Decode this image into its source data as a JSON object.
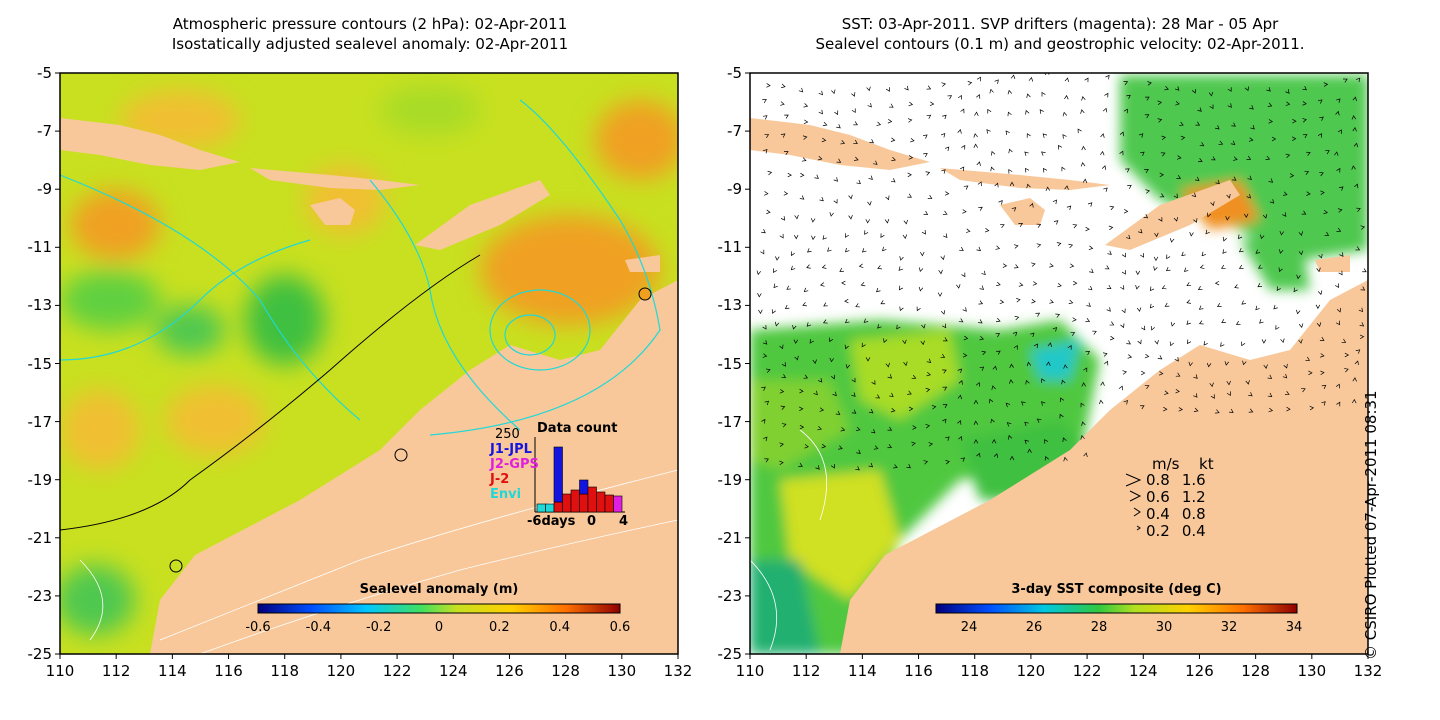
{
  "left_panel": {
    "title_line1": "Atmospheric pressure contours (2 hPa): 02-Apr-2011",
    "title_line2": "Isostatically adjusted sealevel anomaly: 02-Apr-2011",
    "colorbar_title": "Sealevel anomaly (m)",
    "colorbar_ticks": [
      "-0.6",
      "-0.4",
      "-0.2",
      "0",
      "0.2",
      "0.4",
      "0.6"
    ],
    "data_count": {
      "title": "Data count",
      "max_label": "250",
      "missions": [
        {
          "name": "J1-JPL",
          "color": "#1414e0"
        },
        {
          "name": "J2-GPS",
          "color": "#e020e0"
        },
        {
          "name": "J-2",
          "color": "#e01010"
        },
        {
          "name": "Envi",
          "color": "#20d8d8"
        }
      ],
      "x_ticks": [
        "-6days",
        "0",
        "4"
      ]
    }
  },
  "right_panel": {
    "title_line1": "SST: 03-Apr-2011. SVP drifters (magenta): 28 Mar - 05 Apr",
    "title_line2": "Sealevel contours (0.1 m) and geostrophic velocity: 02-Apr-2011.",
    "colorbar_title": "3-day SST composite (deg C)",
    "colorbar_ticks": [
      "24",
      "26",
      "28",
      "30",
      "32",
      "34"
    ],
    "speed_legend": {
      "header_ms": "m/s",
      "header_kt": "kt",
      "rows": [
        {
          "ms": "0.8",
          "kt": "1.6"
        },
        {
          "ms": "0.6",
          "kt": "1.2"
        },
        {
          "ms": "0.4",
          "kt": "0.8"
        },
        {
          "ms": "0.2",
          "kt": "0.4"
        }
      ]
    }
  },
  "map_axes": {
    "lat_ticks": [
      "-5",
      "-7",
      "-9",
      "-11",
      "-13",
      "-15",
      "-17",
      "-19",
      "-21",
      "-23",
      "-25"
    ],
    "lon_ticks": [
      "110",
      "112",
      "114",
      "116",
      "118",
      "120",
      "122",
      "124",
      "126",
      "128",
      "130",
      "132"
    ]
  },
  "colors": {
    "land": "#f8c89a",
    "contour_cyan": "#20d8d8",
    "no_data": "#ffffff"
  },
  "credit": "© CSIRO Plotted 07-Apr-2011 08:31"
}
